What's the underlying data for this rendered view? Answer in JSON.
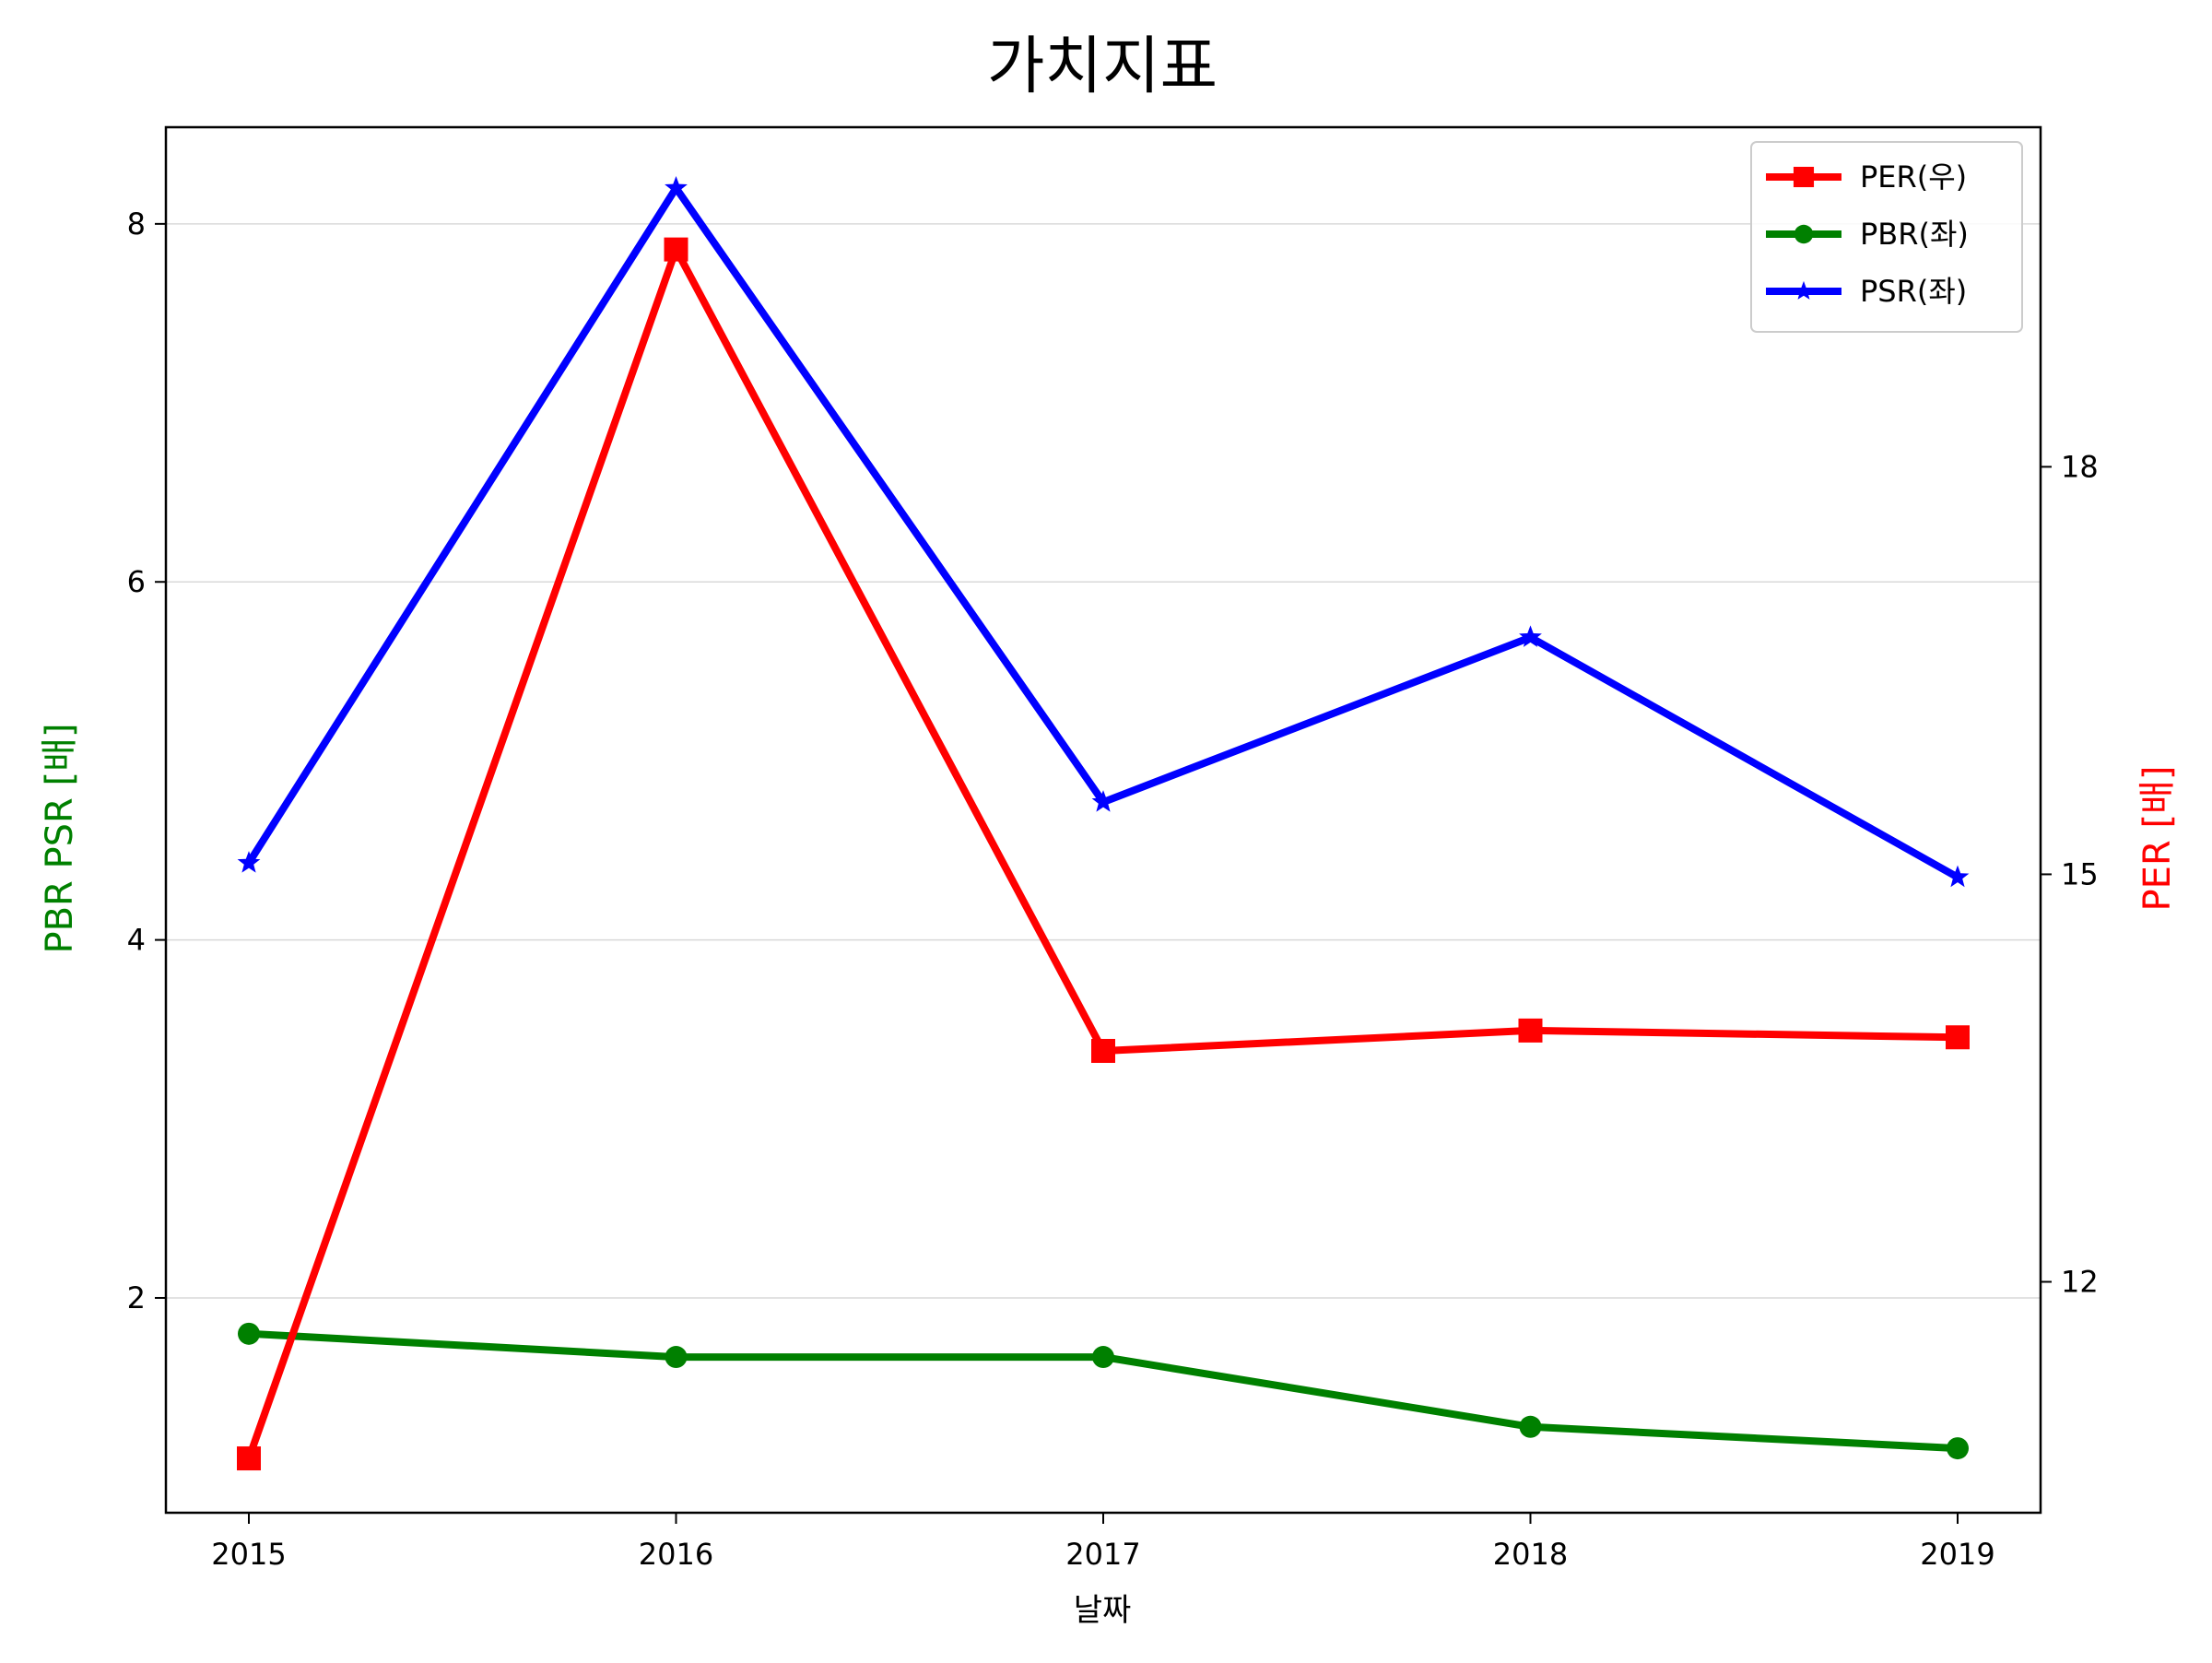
{
  "chart_data": {
    "type": "line",
    "title": "가치지표",
    "xlabel": "날짜",
    "ylabel_left": "PBR PSR [배]",
    "ylabel_right": "PER [배]",
    "categories": [
      "2015",
      "2016",
      "2017",
      "2018",
      "2019"
    ],
    "left_axis": {
      "ylim": [
        0.8,
        8.54
      ],
      "ticks": [
        2,
        4,
        6,
        8
      ],
      "label_color": "#008000"
    },
    "right_axis": {
      "ylim": [
        10.3,
        20.5
      ],
      "ticks": [
        12,
        15,
        18
      ],
      "label_color": "#ff0000"
    },
    "series": [
      {
        "name": "PER(우)",
        "axis": "right",
        "color": "#ff0000",
        "marker": "square",
        "values": [
          10.7,
          19.6,
          13.7,
          13.85,
          13.8
        ]
      },
      {
        "name": "PBR(좌)",
        "axis": "left",
        "color": "#008000",
        "marker": "circle",
        "values": [
          1.8,
          1.67,
          1.67,
          1.28,
          1.16
        ]
      },
      {
        "name": "PSR(좌)",
        "axis": "left",
        "color": "#0000ff",
        "marker": "star",
        "values": [
          4.43,
          8.2,
          4.77,
          5.69,
          4.35
        ]
      }
    ],
    "grid": "horizontal-left-axis",
    "legend": "top-right"
  }
}
